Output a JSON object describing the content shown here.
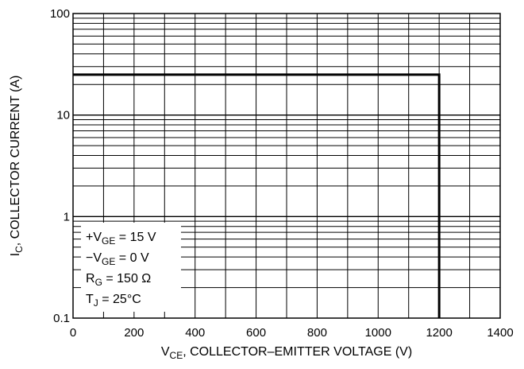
{
  "chart_data": {
    "type": "line",
    "title": "",
    "x_scale": "linear",
    "y_scale": "log",
    "xlim": [
      0,
      1400
    ],
    "ylim": [
      0.1,
      100
    ],
    "x_ticks": [
      0,
      200,
      400,
      600,
      800,
      1000,
      1200,
      1400
    ],
    "x_tick_labels": [
      "0",
      "200",
      "400",
      "600",
      "800",
      "1000",
      "1200",
      "1400"
    ],
    "y_ticks": [
      0.1,
      1,
      10,
      100
    ],
    "y_tick_labels": [
      "0.1",
      "1",
      "10",
      "100"
    ],
    "grid": true,
    "xlabel": {
      "main": "V",
      "sub": "CE",
      "rest": ", COLLECTOR–EMITTER VOLTAGE (V)"
    },
    "ylabel": {
      "main": "I",
      "sub": "C",
      "rest": ", COLLECTOR CURRENT (A)"
    },
    "series": [
      {
        "x": [
          0,
          1200,
          1200
        ],
        "y": [
          25,
          25,
          0.1
        ]
      }
    ],
    "legend_position": "bottom-left",
    "conditions": [
      {
        "pre": "+V",
        "sub": "GE",
        "post": " = 15 V"
      },
      {
        "pre": "−V",
        "sub": "GE",
        "post": " = 0 V"
      },
      {
        "pre": "R",
        "sub": "G",
        "post": " = 150 Ω"
      },
      {
        "pre": "T",
        "sub": "J",
        "post": " = 25°C"
      }
    ],
    "line_color": "#000000",
    "grid_color": "#000000"
  }
}
